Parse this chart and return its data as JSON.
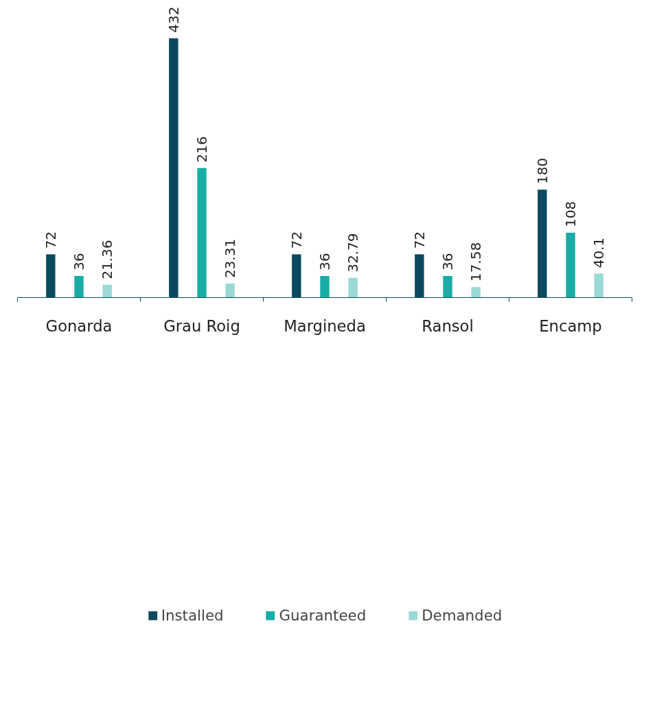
{
  "chart_data": {
    "type": "bar",
    "categories": [
      "Gonarda",
      "Grau Roig",
      "Margineda",
      "Ransol",
      "Encamp"
    ],
    "series": [
      {
        "name": "Installed",
        "color": "#0b4a5e",
        "values": [
          72,
          432,
          72,
          72,
          180
        ]
      },
      {
        "name": "Guaranteed",
        "color": "#1aaca6",
        "values": [
          36,
          216,
          36,
          36,
          108
        ]
      },
      {
        "name": "Demanded",
        "color": "#9ad9d6",
        "values": [
          21.36,
          23.31,
          32.79,
          17.58,
          40.1
        ]
      }
    ],
    "tick_labels": "x",
    "data_labels": true,
    "legend": "bottom",
    "grid": false
  }
}
